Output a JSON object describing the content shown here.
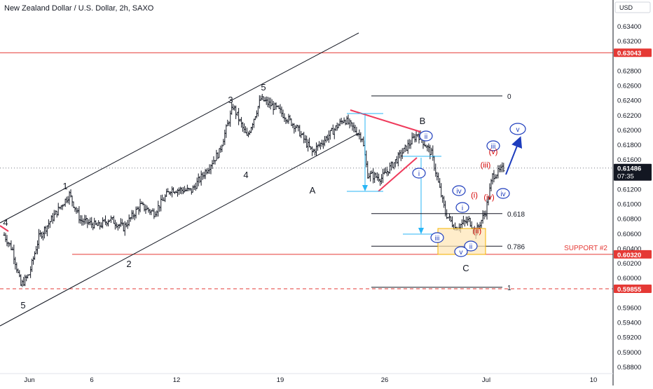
{
  "title": "New Zealand Dollar / U.S. Dollar, 2h, SAXO",
  "currency": "USD",
  "colors": {
    "background": "#ffffff",
    "bar": "#131722",
    "grid": "#f0f3fa",
    "axis_text": "#131722",
    "level_red": "#e53935",
    "channel": "#131722",
    "wedge": "#ef3b5c",
    "measure": "#29b6f6",
    "circle": "#1e3dbd",
    "red_label": "#d50000",
    "fib": "#131722",
    "zone_fill": "#ffe6b3",
    "zone_border": "#f5b400",
    "arrow": "#1e3dbd",
    "price_tag": "#131722"
  },
  "chart_data": {
    "type": "candlestick",
    "x_tick_labels": [
      "Jun",
      "6",
      "12",
      "19",
      "26",
      "Jul",
      "10"
    ],
    "y_tick_labels": [
      "0.63400",
      "0.63200",
      "0.62800",
      "0.62600",
      "0.62400",
      "0.62200",
      "0.62000",
      "0.61800",
      "0.61600",
      "0.61200",
      "0.61000",
      "0.60800",
      "0.60600",
      "0.60400",
      "0.60200",
      "0.60000",
      "0.59600",
      "0.59400",
      "0.59200",
      "0.59000",
      "0.58800"
    ],
    "y_tick_values": [
      0.634,
      0.632,
      0.628,
      0.626,
      0.624,
      0.622,
      0.62,
      0.618,
      0.616,
      0.612,
      0.61,
      0.608,
      0.606,
      0.604,
      0.602,
      0.6,
      0.596,
      0.594,
      0.592,
      0.59,
      0.588
    ],
    "ylim": [
      0.5872,
      0.6368
    ],
    "price_series_knots": [
      {
        "t": 0,
        "p": 0.6058
      },
      {
        "t": 6,
        "p": 0.6038
      },
      {
        "t": 12,
        "p": 0.599
      },
      {
        "t": 18,
        "p": 0.6005
      },
      {
        "t": 25,
        "p": 0.6055
      },
      {
        "t": 40,
        "p": 0.6095
      },
      {
        "t": 47,
        "p": 0.6113
      },
      {
        "t": 55,
        "p": 0.6078
      },
      {
        "t": 68,
        "p": 0.607
      },
      {
        "t": 76,
        "p": 0.608
      },
      {
        "t": 86,
        "p": 0.6068
      },
      {
        "t": 98,
        "p": 0.6098
      },
      {
        "t": 108,
        "p": 0.6088
      },
      {
        "t": 120,
        "p": 0.612
      },
      {
        "t": 135,
        "p": 0.6118
      },
      {
        "t": 155,
        "p": 0.617
      },
      {
        "t": 165,
        "p": 0.6232
      },
      {
        "t": 175,
        "p": 0.619
      },
      {
        "t": 185,
        "p": 0.6242
      },
      {
        "t": 197,
        "p": 0.6228
      },
      {
        "t": 210,
        "p": 0.6205
      },
      {
        "t": 222,
        "p": 0.617
      },
      {
        "t": 230,
        "p": 0.6185
      },
      {
        "t": 245,
        "p": 0.6215
      },
      {
        "t": 258,
        "p": 0.619
      },
      {
        "t": 262,
        "p": 0.614
      },
      {
        "t": 272,
        "p": 0.6135
      },
      {
        "t": 285,
        "p": 0.6165
      },
      {
        "t": 298,
        "p": 0.6195
      },
      {
        "t": 308,
        "p": 0.6168
      },
      {
        "t": 318,
        "p": 0.6088
      },
      {
        "t": 325,
        "p": 0.6068
      },
      {
        "t": 335,
        "p": 0.6078
      },
      {
        "t": 340,
        "p": 0.6062
      },
      {
        "t": 347,
        "p": 0.609
      },
      {
        "t": 352,
        "p": 0.6138
      },
      {
        "t": 360,
        "p": 0.6148
      }
    ],
    "lines": [
      {
        "name": "resistance",
        "price": 0.63043,
        "style": "solid"
      },
      {
        "name": "support #2",
        "price": 0.6032,
        "style": "solid",
        "label": "SUPPORT #2"
      },
      {
        "name": "lower",
        "price": 0.59855,
        "style": "dashed"
      }
    ],
    "fibonacci": [
      {
        "label": "0",
        "price": 0.6246
      },
      {
        "label": "0.618",
        "price": 0.6087
      },
      {
        "label": "0.786",
        "price": 0.6043
      },
      {
        "label": "1",
        "price": 0.59875
      }
    ],
    "price_tags": [
      {
        "label": "0.63043",
        "price": 0.63043,
        "kind": "red"
      },
      {
        "label": "0.61486",
        "price": 0.61486,
        "kind": "dark",
        "sub": "07:35"
      },
      {
        "label": "0.60320",
        "price": 0.6032,
        "kind": "red"
      },
      {
        "label": "0.59855",
        "price": 0.59855,
        "kind": "red"
      }
    ],
    "current_price_line": 0.61486,
    "wave_labels_black": [
      "4",
      "1",
      "2",
      "5",
      "3",
      "5",
      "4",
      "A",
      "B",
      "C"
    ],
    "wave_labels_circled": [
      "ii",
      "i",
      "iii",
      "iv",
      "i",
      "ii",
      "iii",
      "v",
      "iv",
      "v"
    ],
    "wave_labels_red": [
      "(v)",
      "(iii)",
      "(i)",
      "(iv)",
      "(ii)"
    ],
    "grid": false,
    "legend": "none"
  }
}
